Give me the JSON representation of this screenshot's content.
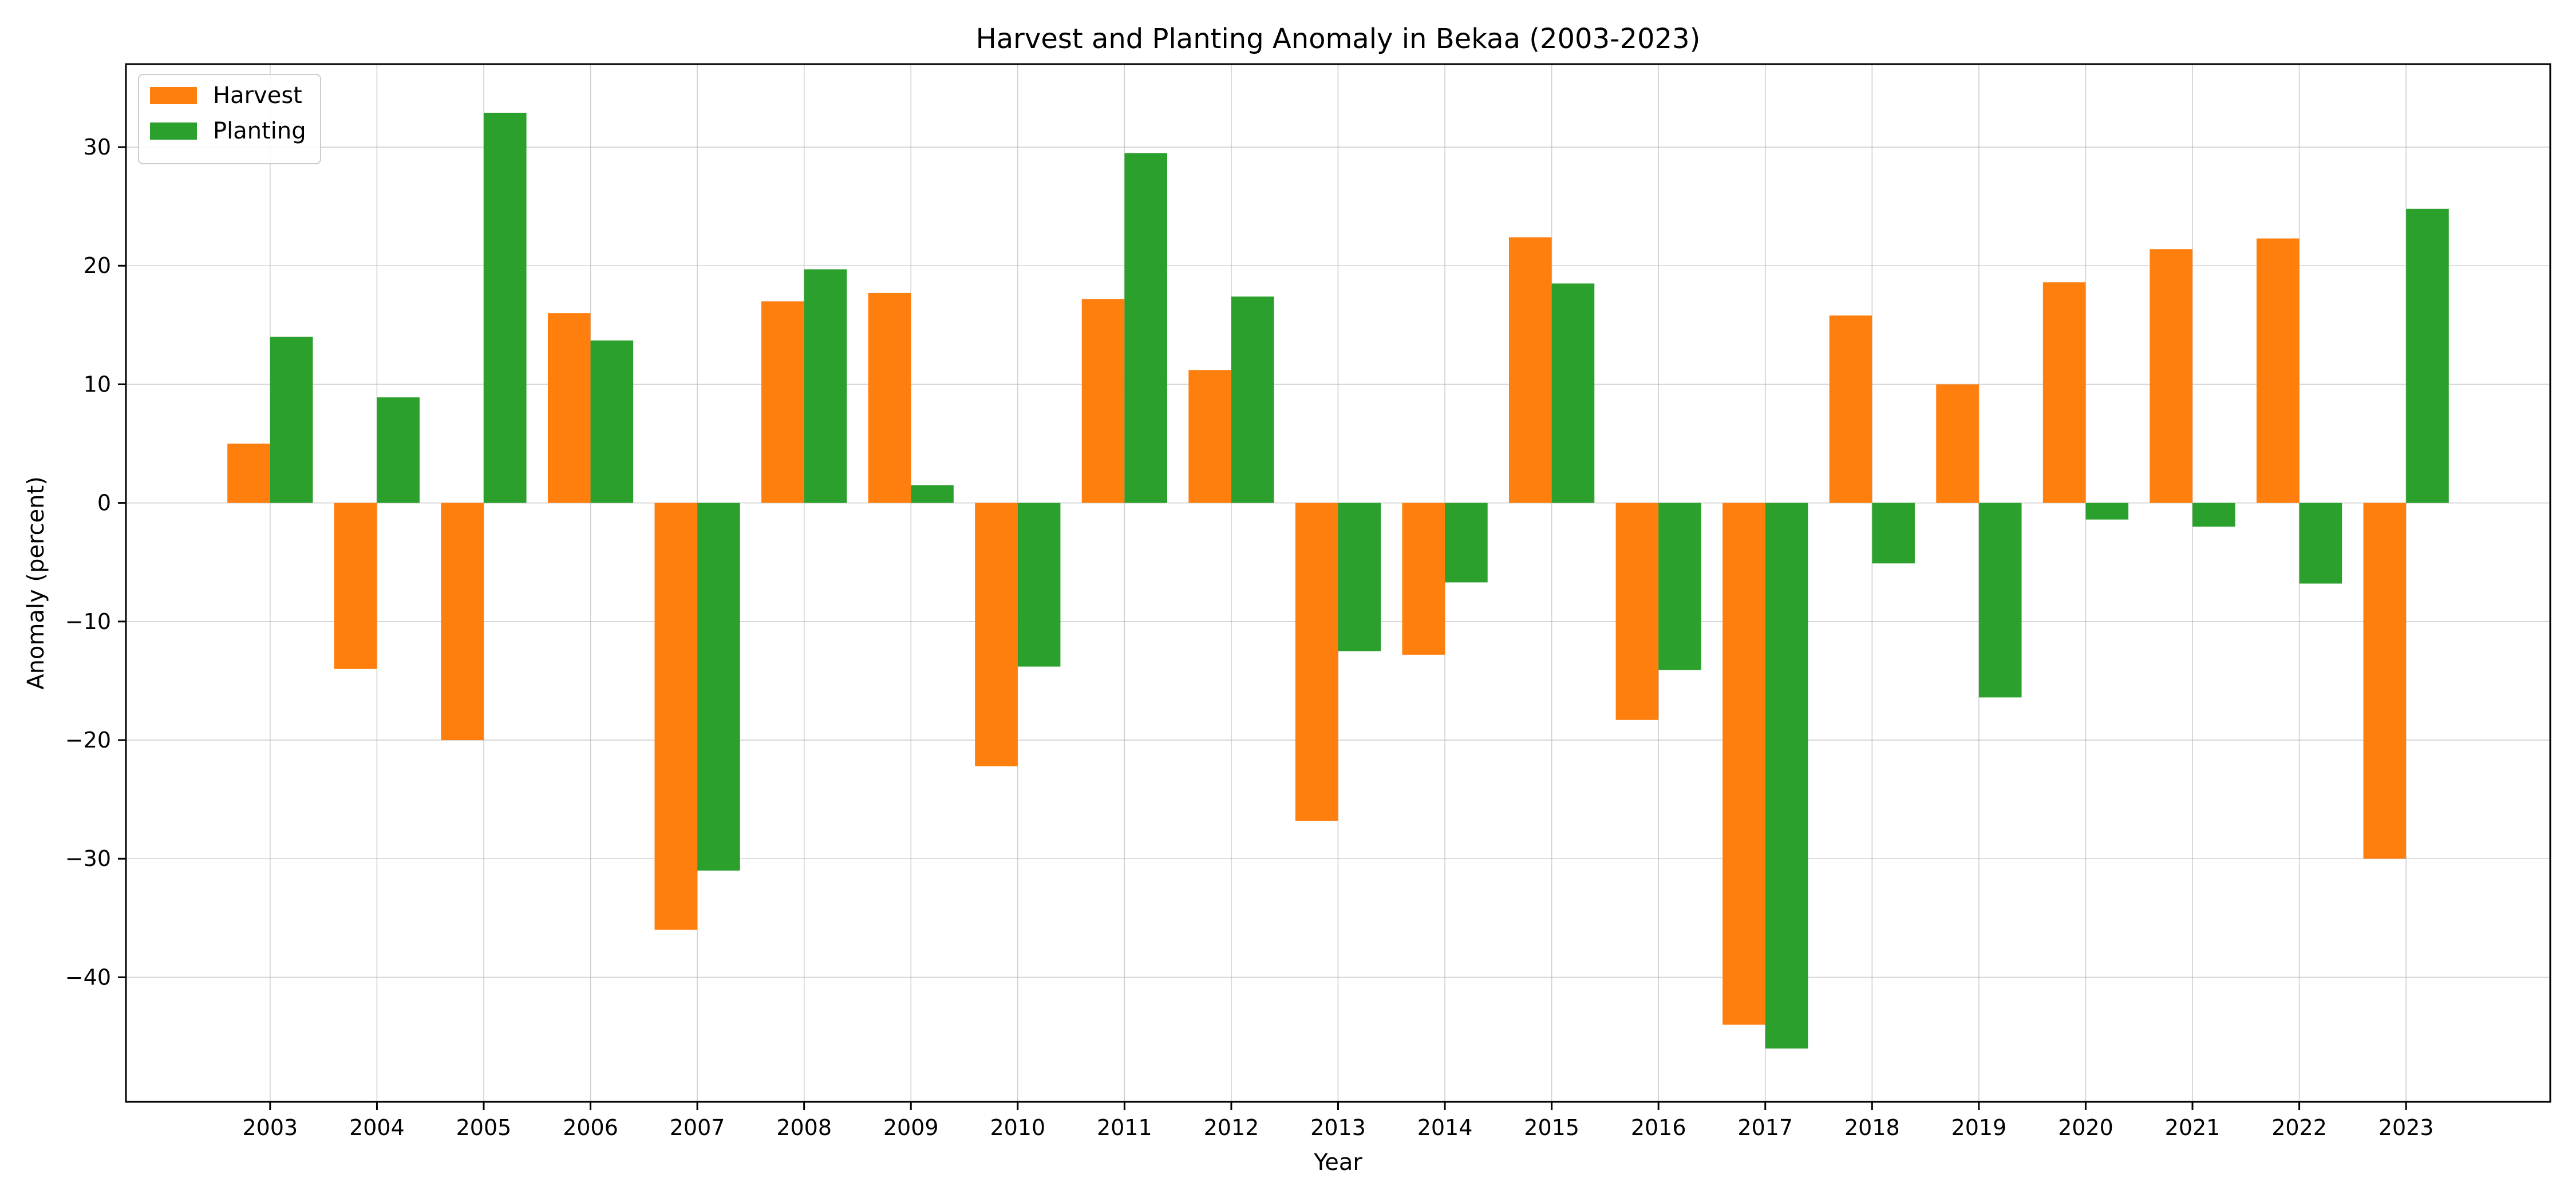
{
  "chart_data": {
    "type": "bar",
    "title": "Harvest and Planting Anomaly in Bekaa (2003-2023)",
    "xlabel": "Year",
    "ylabel": "Anomaly (percent)",
    "categories": [
      "2003",
      "2004",
      "2005",
      "2006",
      "2007",
      "2008",
      "2009",
      "2010",
      "2011",
      "2012",
      "2013",
      "2014",
      "2015",
      "2016",
      "2017",
      "2018",
      "2019",
      "2020",
      "2021",
      "2022",
      "2023"
    ],
    "series": [
      {
        "name": "Harvest",
        "color": "#ff7f0e",
        "values": [
          5.0,
          -14.0,
          -20.0,
          16.0,
          -36.0,
          17.0,
          17.7,
          -22.2,
          17.2,
          11.2,
          -26.8,
          -12.8,
          22.4,
          -18.3,
          -44.0,
          15.8,
          10.0,
          18.6,
          21.4,
          22.3,
          -30.0
        ]
      },
      {
        "name": "Planting",
        "color": "#2ca02c",
        "values": [
          14.0,
          8.9,
          32.9,
          13.7,
          -31.0,
          19.7,
          1.5,
          -13.8,
          29.5,
          17.4,
          -12.5,
          -6.7,
          18.5,
          -14.1,
          -46.0,
          -5.1,
          -16.4,
          -1.4,
          -2.0,
          -6.8,
          24.8
        ]
      }
    ],
    "ylim": [
      -50.5,
      37.0
    ],
    "yticks": [
      30,
      20,
      10,
      0,
      -10,
      -20,
      -30,
      -40
    ],
    "grid": true,
    "legend_position": "top-left"
  }
}
